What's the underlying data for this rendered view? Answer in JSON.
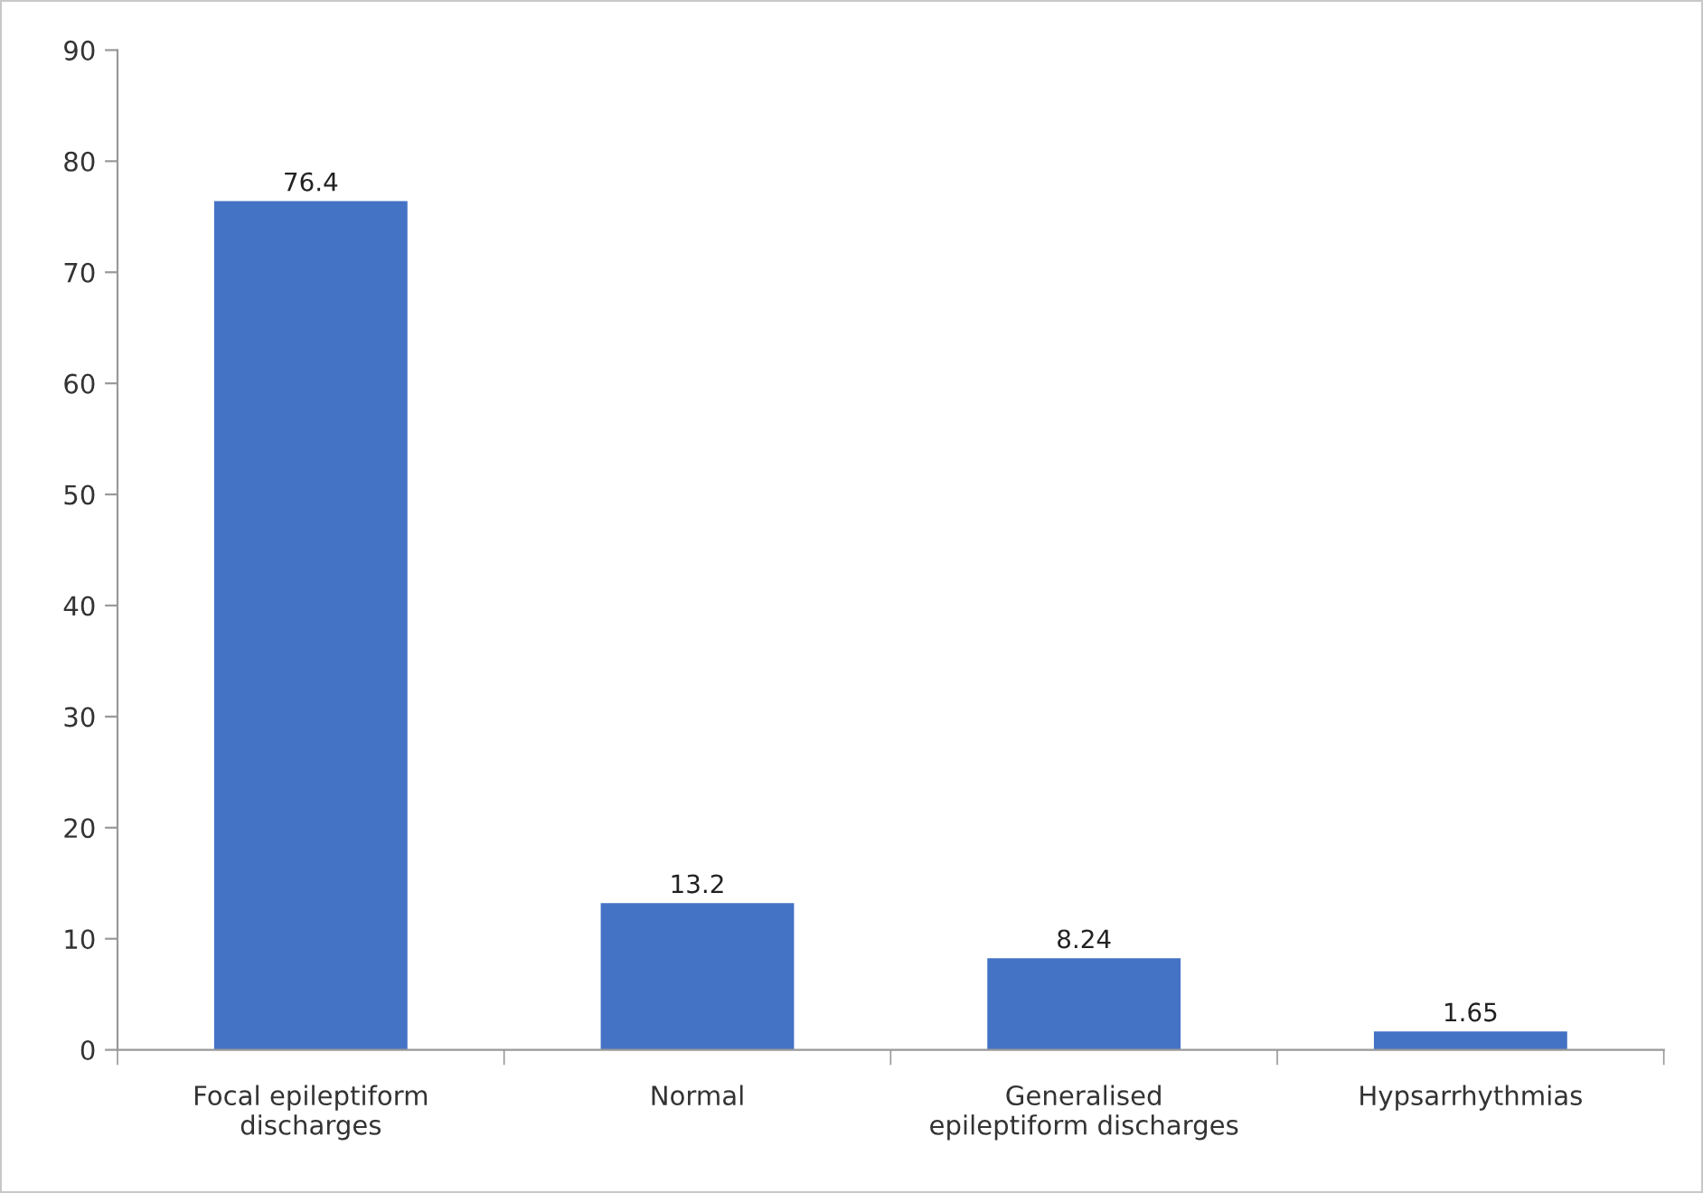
{
  "chart_data": {
    "type": "bar",
    "categories": [
      "Focal epileptiform\ndischarges",
      "Normal",
      "Generalised\nepileptiform discharges",
      "Hypsarrhythmias"
    ],
    "values": [
      76.4,
      13.2,
      8.24,
      1.65
    ],
    "color": "#4472c4",
    "ylim": [
      0,
      90
    ],
    "yticks": [
      0,
      10,
      20,
      30,
      40,
      50,
      60,
      70,
      80,
      90
    ],
    "grid": false,
    "legend": false,
    "data_labels": true
  }
}
